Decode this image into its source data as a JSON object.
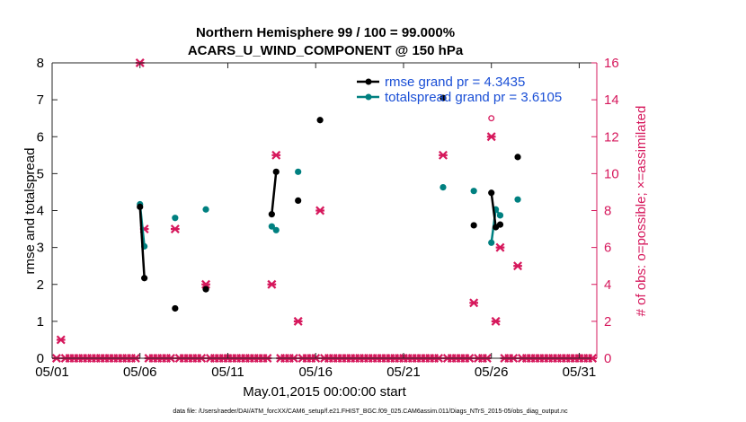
{
  "chart_data": {
    "type": "line",
    "title_line1": "Northern Hemisphere 99 / 100 = 99.000%",
    "title_line2": "ACARS_U_WIND_COMPONENT @ 150 hPa",
    "xlabel": "May.01,2015 00:00:00 start",
    "ylabel_left": "rmse and totalspread",
    "ylabel_right": "# of obs: o=possible; ×=assimilated",
    "footnote": "data file: /Users/raeder/DAI/ATM_forcXX/CAM6_setup/f.e21.FHIST_BGC.f09_025.CAM6assim.011/Diags_NTrS_2015-05/obs_diag_output.nc",
    "xlim": [
      1,
      32
    ],
    "ylim_left": [
      0,
      8
    ],
    "ylim_right": [
      0,
      16
    ],
    "xticks": [
      {
        "value": 1,
        "label": "05/01"
      },
      {
        "value": 6,
        "label": "05/06"
      },
      {
        "value": 11,
        "label": "05/11"
      },
      {
        "value": 16,
        "label": "05/16"
      },
      {
        "value": 21,
        "label": "05/21"
      },
      {
        "value": 26,
        "label": "05/26"
      },
      {
        "value": 31,
        "label": "05/31"
      }
    ],
    "yticks_left": [
      "0",
      "1",
      "2",
      "3",
      "4",
      "5",
      "6",
      "7",
      "8"
    ],
    "yticks_right": [
      "0",
      "2",
      "4",
      "6",
      "8",
      "10",
      "12",
      "14",
      "16"
    ],
    "colors": {
      "rmse": "#000000",
      "spread": "#008080",
      "obs": "#d6185c",
      "legend_text": "#1a4fd6"
    },
    "series": [
      {
        "name": "rmse grand pr = 4.3435",
        "key": "rmse",
        "segments": [
          [
            [
              6.0,
              4.1
            ],
            [
              6.25,
              2.17
            ]
          ],
          [
            [
              8.0,
              1.35
            ]
          ],
          [
            [
              9.75,
              1.87
            ]
          ],
          [
            [
              13.5,
              3.9
            ],
            [
              13.75,
              5.05
            ]
          ],
          [
            [
              15.0,
              4.27
            ]
          ],
          [
            [
              16.25,
              6.45
            ]
          ],
          [
            [
              23.25,
              7.05
            ]
          ],
          [
            [
              25.0,
              3.6
            ]
          ],
          [
            [
              26.0,
              4.48
            ],
            [
              26.25,
              3.55
            ],
            [
              26.5,
              3.62
            ]
          ],
          [
            [
              27.5,
              5.45
            ]
          ]
        ]
      },
      {
        "name": "totalspread grand pr = 3.6105",
        "key": "spread",
        "segments": [
          [
            [
              6.0,
              4.17
            ],
            [
              6.25,
              3.03
            ]
          ],
          [
            [
              8.0,
              3.8
            ]
          ],
          [
            [
              9.75,
              4.03
            ]
          ],
          [
            [
              13.5,
              3.57
            ],
            [
              13.75,
              3.47
            ]
          ],
          [
            [
              15.0,
              5.05
            ]
          ],
          [
            [
              23.25,
              4.63
            ]
          ],
          [
            [
              25.0,
              4.53
            ]
          ],
          [
            [
              26.0,
              3.13
            ],
            [
              26.25,
              4.03
            ],
            [
              26.5,
              3.87
            ]
          ],
          [
            [
              27.5,
              4.3
            ]
          ]
        ]
      }
    ],
    "obs_assimilated": [
      [
        1.25,
        0
      ],
      [
        1.5,
        1
      ],
      [
        1.75,
        0
      ],
      [
        2,
        0
      ],
      [
        2.25,
        0
      ],
      [
        2.5,
        0
      ],
      [
        2.75,
        0
      ],
      [
        3,
        0
      ],
      [
        3.25,
        0
      ],
      [
        3.5,
        0
      ],
      [
        3.75,
        0
      ],
      [
        4,
        0
      ],
      [
        4.25,
        0
      ],
      [
        4.5,
        0
      ],
      [
        4.75,
        0
      ],
      [
        5,
        0
      ],
      [
        5.25,
        0
      ],
      [
        5.5,
        0
      ],
      [
        5.75,
        0
      ],
      [
        6,
        16
      ],
      [
        6.25,
        7
      ],
      [
        6.5,
        0
      ],
      [
        6.75,
        0
      ],
      [
        7,
        0
      ],
      [
        7.25,
        0
      ],
      [
        7.5,
        0
      ],
      [
        7.75,
        0
      ],
      [
        8,
        7
      ],
      [
        8.25,
        0
      ],
      [
        8.5,
        0
      ],
      [
        8.75,
        0
      ],
      [
        9,
        0
      ],
      [
        9.25,
        0
      ],
      [
        9.5,
        0
      ],
      [
        9.75,
        4
      ],
      [
        10,
        0
      ],
      [
        10.25,
        0
      ],
      [
        10.5,
        0
      ],
      [
        10.75,
        0
      ],
      [
        11,
        0
      ],
      [
        11.25,
        0
      ],
      [
        11.5,
        0
      ],
      [
        11.75,
        0
      ],
      [
        12,
        0
      ],
      [
        12.25,
        0
      ],
      [
        12.5,
        0
      ],
      [
        12.75,
        0
      ],
      [
        13,
        0
      ],
      [
        13.25,
        0
      ],
      [
        13.5,
        4
      ],
      [
        13.75,
        11
      ],
      [
        14,
        0
      ],
      [
        14.25,
        0
      ],
      [
        14.5,
        0
      ],
      [
        14.75,
        0
      ],
      [
        15,
        2
      ],
      [
        15.25,
        0
      ],
      [
        15.5,
        0
      ],
      [
        15.75,
        0
      ],
      [
        16,
        0
      ],
      [
        16.25,
        8
      ],
      [
        16.5,
        0
      ],
      [
        16.75,
        0
      ],
      [
        17,
        0
      ],
      [
        17.25,
        0
      ],
      [
        17.5,
        0
      ],
      [
        17.75,
        0
      ],
      [
        18,
        0
      ],
      [
        18.25,
        0
      ],
      [
        18.5,
        0
      ],
      [
        18.75,
        0
      ],
      [
        19,
        0
      ],
      [
        19.25,
        0
      ],
      [
        19.5,
        0
      ],
      [
        19.75,
        0
      ],
      [
        20,
        0
      ],
      [
        20.25,
        0
      ],
      [
        20.5,
        0
      ],
      [
        20.75,
        0
      ],
      [
        21,
        0
      ],
      [
        21.25,
        0
      ],
      [
        21.5,
        0
      ],
      [
        21.75,
        0
      ],
      [
        22,
        0
      ],
      [
        22.25,
        0
      ],
      [
        22.5,
        0
      ],
      [
        22.75,
        0
      ],
      [
        23,
        0
      ],
      [
        23.25,
        11
      ],
      [
        23.5,
        0
      ],
      [
        23.75,
        0
      ],
      [
        24,
        0
      ],
      [
        24.25,
        0
      ],
      [
        24.5,
        0
      ],
      [
        24.75,
        0
      ],
      [
        25,
        3
      ],
      [
        25.25,
        0
      ],
      [
        25.5,
        0
      ],
      [
        25.75,
        0
      ],
      [
        26,
        12
      ],
      [
        26.25,
        2
      ],
      [
        26.5,
        6
      ],
      [
        26.75,
        0
      ],
      [
        27,
        0
      ],
      [
        27.25,
        0
      ],
      [
        27.5,
        5
      ],
      [
        27.75,
        0
      ],
      [
        28,
        0
      ],
      [
        28.25,
        0
      ],
      [
        28.5,
        0
      ],
      [
        28.75,
        0
      ],
      [
        29,
        0
      ],
      [
        29.25,
        0
      ],
      [
        29.5,
        0
      ],
      [
        29.75,
        0
      ],
      [
        30,
        0
      ],
      [
        30.25,
        0
      ],
      [
        30.5,
        0
      ],
      [
        30.75,
        0
      ],
      [
        31,
        0
      ],
      [
        31.25,
        0
      ],
      [
        31.5,
        0
      ],
      [
        31.75,
        0
      ]
    ],
    "obs_possible": [
      [
        26.0,
        13
      ]
    ]
  }
}
